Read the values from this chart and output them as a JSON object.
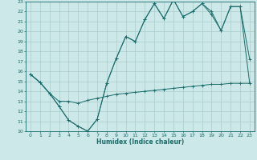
{
  "title": "",
  "xlabel": "Humidex (Indice chaleur)",
  "bg_color": "#cce8e8",
  "line_color": "#1a6b6b",
  "grid_color": "#aacccc",
  "xlim": [
    -0.5,
    23.5
  ],
  "ylim": [
    10,
    23
  ],
  "xticks": [
    0,
    1,
    2,
    3,
    4,
    5,
    6,
    7,
    8,
    9,
    10,
    11,
    12,
    13,
    14,
    15,
    16,
    17,
    18,
    19,
    20,
    21,
    22,
    23
  ],
  "yticks": [
    10,
    11,
    12,
    13,
    14,
    15,
    16,
    17,
    18,
    19,
    20,
    21,
    22,
    23
  ],
  "line1_x": [
    0,
    1,
    2,
    3,
    4,
    5,
    6,
    7,
    8,
    9,
    10,
    11,
    12,
    13,
    14,
    15,
    16,
    17,
    18,
    19,
    20,
    21,
    22,
    23
  ],
  "line1_y": [
    15.7,
    14.9,
    13.8,
    12.5,
    11.1,
    10.5,
    10.0,
    11.2,
    14.8,
    17.3,
    19.5,
    19.0,
    21.2,
    22.8,
    21.3,
    23.2,
    21.5,
    22.0,
    22.8,
    22.0,
    20.1,
    22.5,
    22.5,
    17.2
  ],
  "line2_x": [
    0,
    1,
    2,
    3,
    4,
    5,
    6,
    7,
    8,
    9,
    10,
    11,
    12,
    13,
    14,
    15,
    16,
    17,
    18,
    19,
    20,
    21,
    22,
    23
  ],
  "line2_y": [
    15.7,
    14.9,
    13.8,
    12.5,
    11.1,
    10.5,
    10.0,
    11.2,
    14.8,
    17.3,
    19.5,
    19.0,
    21.2,
    22.8,
    21.3,
    23.2,
    21.5,
    22.0,
    22.8,
    21.7,
    20.1,
    22.5,
    22.5,
    14.8
  ],
  "line3_x": [
    0,
    1,
    2,
    3,
    4,
    5,
    6,
    7,
    8,
    9,
    10,
    11,
    12,
    13,
    14,
    15,
    16,
    17,
    18,
    19,
    20,
    21,
    22,
    23
  ],
  "line3_y": [
    15.7,
    14.9,
    13.8,
    13.0,
    13.0,
    12.8,
    13.1,
    13.3,
    13.5,
    13.7,
    13.8,
    13.9,
    14.0,
    14.1,
    14.2,
    14.3,
    14.4,
    14.5,
    14.6,
    14.7,
    14.7,
    14.8,
    14.8,
    14.8
  ]
}
